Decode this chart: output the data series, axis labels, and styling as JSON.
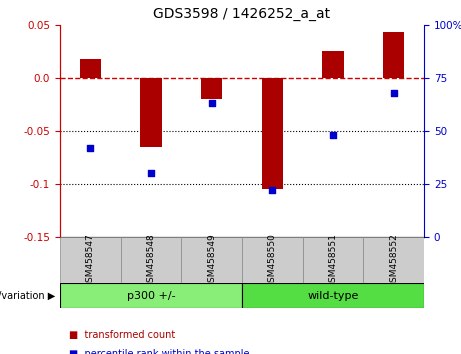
{
  "title": "GDS3598 / 1426252_a_at",
  "categories": [
    "GSM458547",
    "GSM458548",
    "GSM458549",
    "GSM458550",
    "GSM458551",
    "GSM458552"
  ],
  "red_bars": [
    0.018,
    -0.065,
    -0.02,
    -0.105,
    0.025,
    0.043
  ],
  "blue_dots_pct": [
    42,
    30,
    63,
    22,
    48,
    68
  ],
  "ylim_left": [
    -0.15,
    0.05
  ],
  "ylim_right": [
    0,
    100
  ],
  "left_yticks": [
    -0.15,
    -0.1,
    -0.05,
    0.0,
    0.05
  ],
  "right_yticks": [
    0,
    25,
    50,
    75,
    100
  ],
  "dotted_lines": [
    -0.05,
    -0.1
  ],
  "dashed_zero_color": "#cc0000",
  "bar_color": "#aa0000",
  "dot_color": "#0000cc",
  "groups": [
    {
      "label": "p300 +/-",
      "indices": [
        0,
        1,
        2
      ],
      "color": "#88ee77"
    },
    {
      "label": "wild-type",
      "indices": [
        3,
        4,
        5
      ],
      "color": "#55dd44"
    }
  ],
  "genotype_label": "genotype/variation",
  "legend_items": [
    {
      "label": "transformed count",
      "color": "#aa0000"
    },
    {
      "label": "percentile rank within the sample",
      "color": "#0000cc"
    }
  ],
  "title_fontsize": 10,
  "tick_fontsize": 7.5,
  "axis_label_color_left": "#cc0000",
  "axis_label_color_right": "#0000cc",
  "sample_box_color": "#cccccc",
  "bar_width": 0.35
}
